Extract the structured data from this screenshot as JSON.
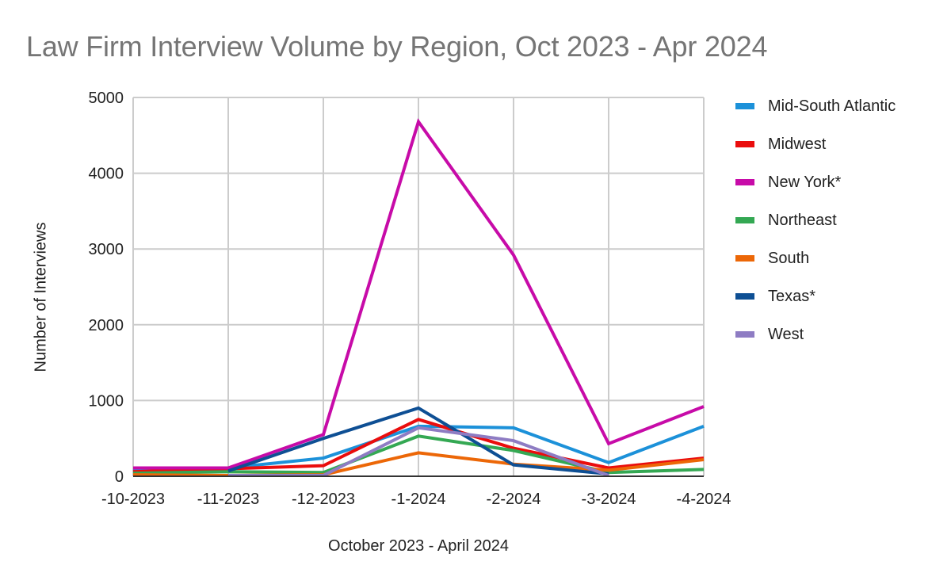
{
  "chart_data": {
    "type": "line",
    "title": "Law Firm Interview Volume by Region, Oct 2023 - Apr 2024",
    "xlabel": "October 2023 - April 2024",
    "ylabel": "Number of Interviews",
    "ylim": [
      0,
      5000
    ],
    "yticks": [
      0,
      1000,
      2000,
      3000,
      4000,
      5000
    ],
    "grid": true,
    "legend_position": "right",
    "categories": [
      "-10-2023",
      "-11-2023",
      "-12-2023",
      "-1-2024",
      "-2-2024",
      "-3-2024",
      "-4-2024"
    ],
    "series": [
      {
        "name": "Mid-South Atlantic",
        "color": "#1c91d9",
        "values": [
          80,
          110,
          240,
          660,
          640,
          180,
          660
        ]
      },
      {
        "name": "Midwest",
        "color": "#ea0d0d",
        "values": [
          60,
          100,
          140,
          750,
          370,
          110,
          240
        ]
      },
      {
        "name": "New York*",
        "color": "#c70ba8",
        "values": [
          110,
          110,
          550,
          4680,
          2920,
          430,
          920
        ]
      },
      {
        "name": "Northeast",
        "color": "#34a853",
        "values": [
          40,
          60,
          50,
          530,
          340,
          50,
          90
        ]
      },
      {
        "name": "South",
        "color": "#ec6707",
        "values": [
          20,
          10,
          20,
          310,
          160,
          80,
          220
        ]
      },
      {
        "name": "Texas*",
        "color": "#0e4f94",
        "values": [
          null,
          70,
          500,
          900,
          150,
          30,
          null
        ]
      },
      {
        "name": "West",
        "color": "#8e7cc3",
        "values": [
          null,
          10,
          10,
          640,
          470,
          10,
          null
        ]
      }
    ]
  }
}
